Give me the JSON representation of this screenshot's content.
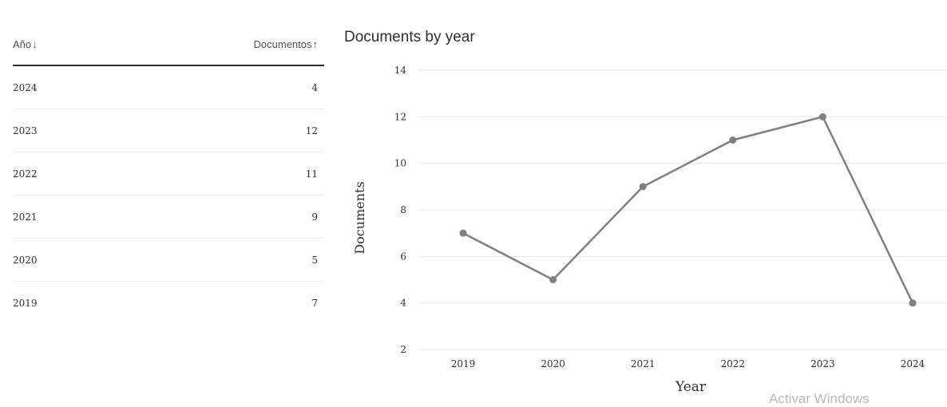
{
  "table": {
    "col_year_label": "Año",
    "col_year_sort_icon": "arrow-down-icon",
    "col_docs_label": "Documentos",
    "col_docs_sort_icon": "arrow-up-icon",
    "rows": [
      {
        "year": "2024",
        "count": "4"
      },
      {
        "year": "2023",
        "count": "12"
      },
      {
        "year": "2022",
        "count": "11"
      },
      {
        "year": "2021",
        "count": "9"
      },
      {
        "year": "2020",
        "count": "5"
      },
      {
        "year": "2019",
        "count": "7"
      }
    ]
  },
  "chart_data": {
    "type": "line",
    "title": "Documents by year",
    "xlabel": "Year",
    "ylabel": "Documents",
    "x": [
      "2019",
      "2020",
      "2021",
      "2022",
      "2023",
      "2024"
    ],
    "series": [
      {
        "values": [
          7,
          5,
          9,
          11,
          12,
          4
        ],
        "color": "#808080"
      }
    ],
    "ylim": [
      2,
      14
    ],
    "yticks": [
      2,
      4,
      6,
      8,
      10,
      12,
      14
    ],
    "grid": true,
    "gridColor": "#e6e6e6",
    "legend": "none"
  },
  "watermark": "Activar Windows"
}
